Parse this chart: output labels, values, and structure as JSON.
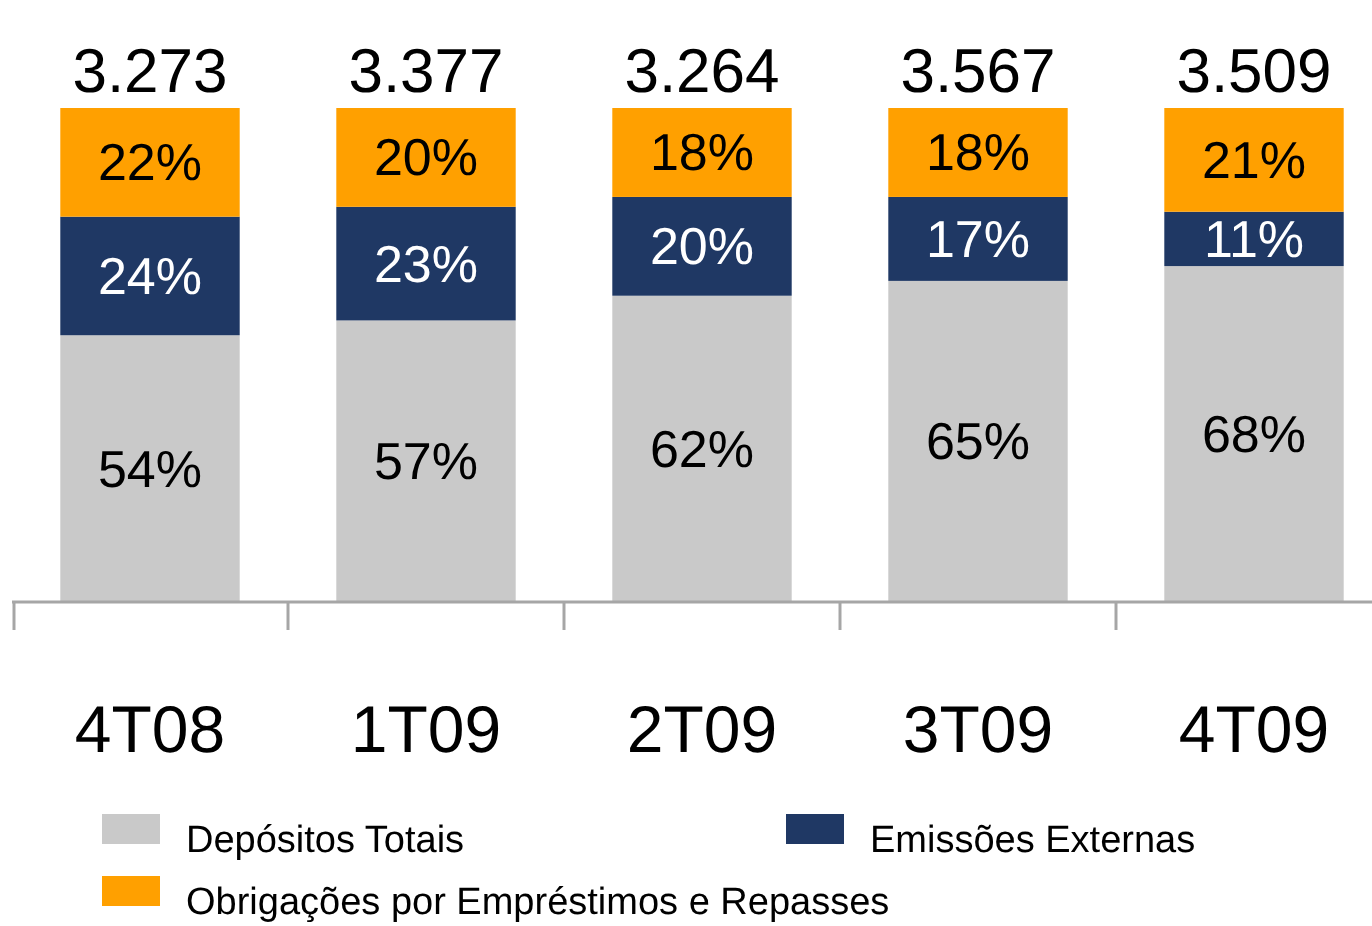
{
  "chart_data": {
    "type": "bar",
    "stacked": true,
    "categories": [
      "4T08",
      "1T09",
      "2T09",
      "3T09",
      "4T09"
    ],
    "series": [
      {
        "name": "Depósitos Totais",
        "color": "#c9c9c9",
        "values": [
          54,
          57,
          62,
          65,
          68
        ],
        "value_labels": [
          "54%",
          "57%",
          "62%",
          "65%",
          "68%"
        ]
      },
      {
        "name": "Emissões Externas",
        "color": "#1f3864",
        "values": [
          24,
          23,
          20,
          17,
          11
        ],
        "value_labels": [
          "24%",
          "23%",
          "20%",
          "17%",
          "11%"
        ]
      },
      {
        "name": "Obrigações por Empréstimos e Repasses",
        "color": "#ffa000",
        "values": [
          22,
          20,
          18,
          18,
          21
        ],
        "value_labels": [
          "22%",
          "20%",
          "18%",
          "18%",
          "21%"
        ]
      }
    ],
    "annotations": [
      {
        "text": "3.273",
        "x": "4T08",
        "y": 100
      },
      {
        "text": "3.377",
        "x": "1T09",
        "y": 100
      },
      {
        "text": "3.264",
        "x": "2T09",
        "y": 100
      },
      {
        "text": "3.567",
        "x": "3T09",
        "y": 100
      },
      {
        "text": "3.509",
        "x": "4T09",
        "y": 100
      }
    ],
    "legend": "bottom"
  }
}
